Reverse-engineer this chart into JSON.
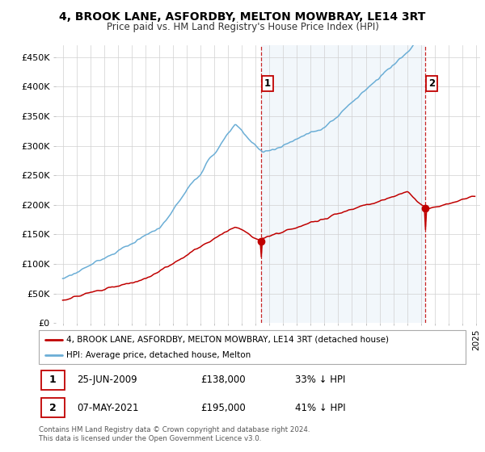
{
  "title": "4, BROOK LANE, ASFORDBY, MELTON MOWBRAY, LE14 3RT",
  "subtitle": "Price paid vs. HM Land Registry's House Price Index (HPI)",
  "hpi_color": "#6baed6",
  "price_color": "#c00000",
  "annotation_color": "#c00000",
  "shading_color": "#cfe2f3",
  "background_color": "#ffffff",
  "ylim": [
    0,
    470000
  ],
  "yticks": [
    0,
    50000,
    100000,
    150000,
    200000,
    250000,
    300000,
    350000,
    400000,
    450000
  ],
  "ytick_labels": [
    "£0",
    "£50K",
    "£100K",
    "£150K",
    "£200K",
    "£250K",
    "£300K",
    "£350K",
    "£400K",
    "£450K"
  ],
  "xstart_year": 1995,
  "xend_year": 2025,
  "legend_entries": [
    "4, BROOK LANE, ASFORDBY, MELTON MOWBRAY, LE14 3RT (detached house)",
    "HPI: Average price, detached house, Melton"
  ],
  "annotation1": {
    "label": "1",
    "date_idx_year": 2009,
    "date_idx_month": 6,
    "price": 138000,
    "text": "25-JUN-2009",
    "amount": "£138,000",
    "pct": "33% ↓ HPI"
  },
  "annotation2": {
    "label": "2",
    "date_idx_year": 2021,
    "date_idx_month": 5,
    "price": 195000,
    "text": "07-MAY-2021",
    "amount": "£195,000",
    "pct": "41% ↓ HPI"
  },
  "footer": "Contains HM Land Registry data © Crown copyright and database right 2024.\nThis data is licensed under the Open Government Licence v3.0."
}
